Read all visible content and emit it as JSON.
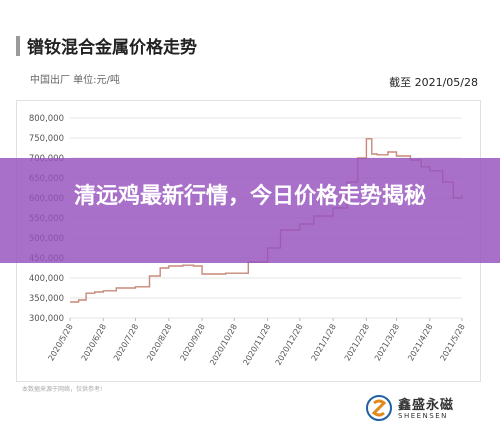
{
  "header": {
    "title": "镨钕混合金属价格走势",
    "subtitle": "中国出厂   单位:元/吨",
    "date": "截至 2021/05/28"
  },
  "footnote": "本数据来源于网络，仅供参考!",
  "logo": {
    "cn": "鑫盛永磁",
    "en": "SHEENSEN"
  },
  "banner": {
    "text": "清远鸡最新行情，今日价格走势揭秘"
  },
  "colors": {
    "line": "#c8897a",
    "banner": "#9650be",
    "grid": "#e6e6e6",
    "tick": "#555555"
  },
  "chart_data": {
    "type": "line",
    "title": "镨钕混合金属价格走势",
    "ylabel": "",
    "xlabel": "",
    "ylim": [
      300000,
      800000
    ],
    "yticks": [
      "800,000",
      "750,000",
      "700,000",
      "650,000",
      "600,000",
      "550,000",
      "500,000",
      "450,000",
      "400,000",
      "350,000",
      "300,000"
    ],
    "xticks": [
      "2020/5/28",
      "2020/6/28",
      "2020/7/28",
      "2020/8/28",
      "2020/9/28",
      "2020/10/28",
      "2020/11/28",
      "2020/12/28",
      "2021/1/28",
      "2021/2/28",
      "2021/3/28",
      "2021/4/28",
      "2021/5/28"
    ],
    "x": [
      "2020/5/28",
      "2020/6/5",
      "2020/6/12",
      "2020/6/20",
      "2020/6/28",
      "2020/7/10",
      "2020/7/28",
      "2020/8/10",
      "2020/8/20",
      "2020/8/28",
      "2020/9/10",
      "2020/9/20",
      "2020/9/28",
      "2020/10/10",
      "2020/10/20",
      "2020/10/28",
      "2020/11/10",
      "2020/11/28",
      "2020/12/10",
      "2020/12/28",
      "2021/1/10",
      "2021/1/28",
      "2021/2/10",
      "2021/2/20",
      "2021/2/28",
      "2021/3/5",
      "2021/3/10",
      "2021/3/20",
      "2021/3/28",
      "2021/4/10",
      "2021/4/20",
      "2021/4/28",
      "2021/5/10",
      "2021/5/20",
      "2021/5/28"
    ],
    "values": [
      340000,
      345000,
      362000,
      365000,
      368000,
      375000,
      378000,
      405000,
      425000,
      430000,
      432000,
      430000,
      410000,
      410000,
      412000,
      412000,
      440000,
      475000,
      520000,
      535000,
      555000,
      575000,
      640000,
      700000,
      748000,
      710000,
      708000,
      715000,
      705000,
      695000,
      678000,
      668000,
      640000,
      600000,
      608000
    ]
  }
}
